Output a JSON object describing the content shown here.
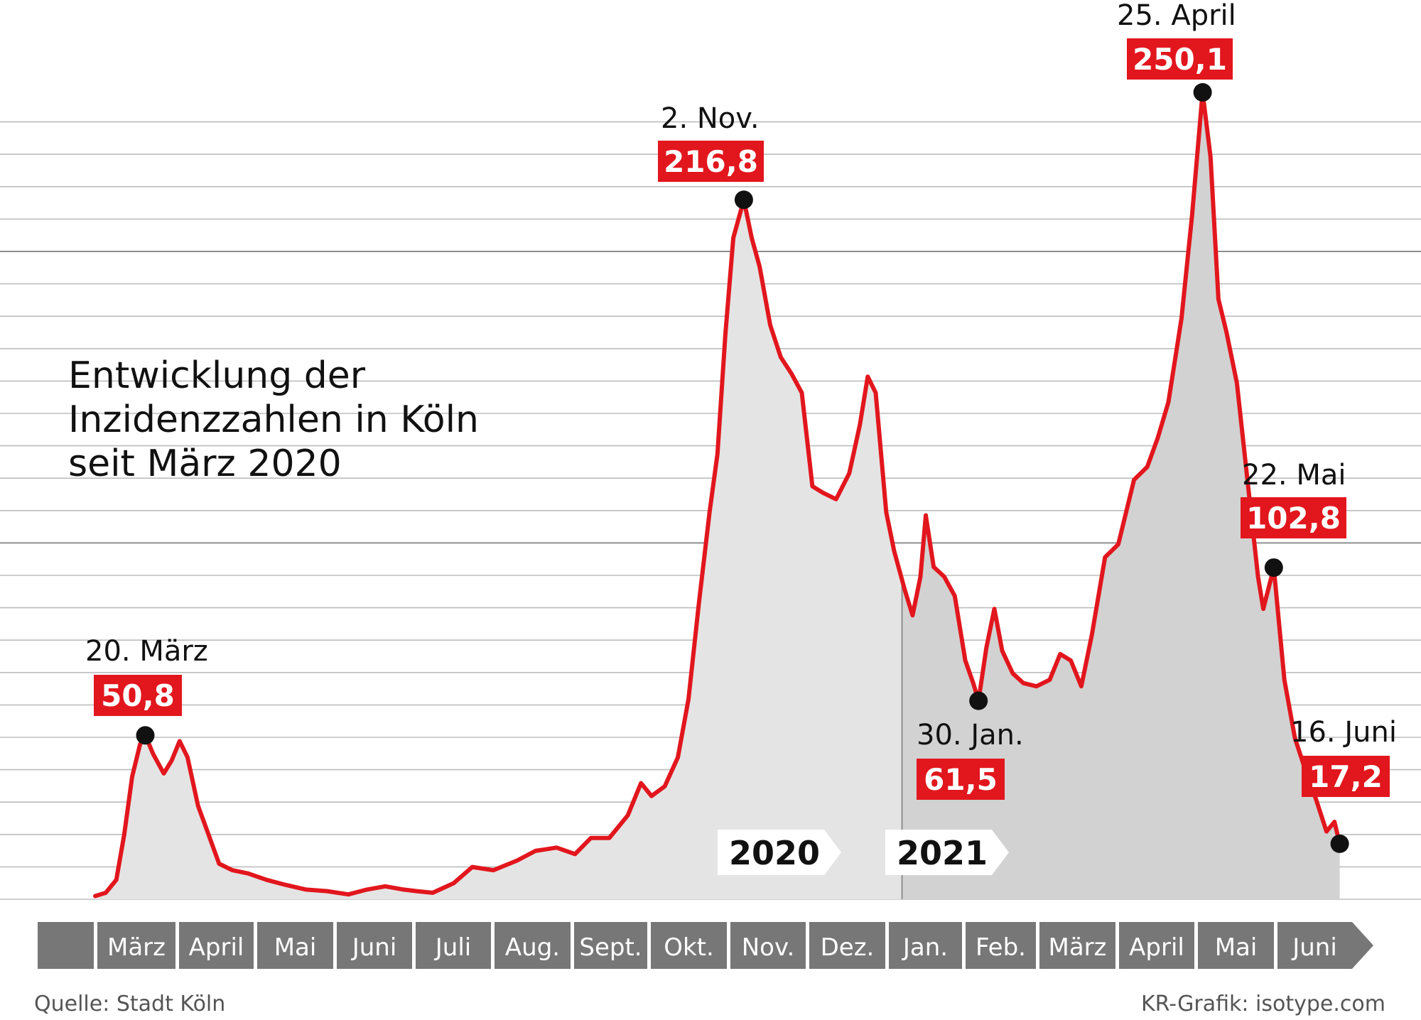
{
  "title_lines": [
    "Entwicklung der",
    "Inzidenzzahlen in Köln",
    "seit März 2020"
  ],
  "source": "Quelle: Stadt Köln",
  "credit": "KR-Grafik: isotype.com",
  "colors": {
    "line": "#e2161d",
    "area_2020": "#e4e4e4",
    "area_2021": "#d2d2d2",
    "grid": "#bdbdbd",
    "axis_bar": "#777777"
  },
  "chart_data": {
    "type": "area",
    "x_unit": "date",
    "ylim": [
      0,
      250.1
    ],
    "grid": true,
    "months": [
      "",
      "März",
      "April",
      "Mai",
      "Juni",
      "Juli",
      "Aug.",
      "Sept.",
      "Okt.",
      "Nov.",
      "Dez.",
      "Jan.",
      "Feb.",
      "März",
      "April",
      "Mai",
      "Juni"
    ],
    "year_labels": [
      {
        "label": "2020",
        "from": "2020-01-01"
      },
      {
        "label": "2021",
        "from": "2021-01-01"
      }
    ],
    "series": [
      {
        "points": [
          [
            "2020-03-01",
            1
          ],
          [
            "2020-03-05",
            2
          ],
          [
            "2020-03-09",
            6
          ],
          [
            "2020-03-12",
            20
          ],
          [
            "2020-03-15",
            38
          ],
          [
            "2020-03-18",
            48
          ],
          [
            "2020-03-20",
            50.8
          ],
          [
            "2020-03-23",
            45
          ],
          [
            "2020-03-27",
            39
          ],
          [
            "2020-03-30",
            43
          ],
          [
            "2020-04-02",
            49
          ],
          [
            "2020-04-05",
            44
          ],
          [
            "2020-04-09",
            29
          ],
          [
            "2020-04-13",
            20
          ],
          [
            "2020-04-17",
            11
          ],
          [
            "2020-04-22",
            9
          ],
          [
            "2020-04-28",
            8
          ],
          [
            "2020-05-05",
            6
          ],
          [
            "2020-05-12",
            4.5
          ],
          [
            "2020-05-20",
            3
          ],
          [
            "2020-05-28",
            2.5
          ],
          [
            "2020-06-05",
            1.5
          ],
          [
            "2020-06-12",
            3
          ],
          [
            "2020-06-19",
            4
          ],
          [
            "2020-06-26",
            3
          ],
          [
            "2020-07-01",
            2.5
          ],
          [
            "2020-07-07",
            2
          ],
          [
            "2020-07-15",
            5
          ],
          [
            "2020-07-22",
            10
          ],
          [
            "2020-07-30",
            9
          ],
          [
            "2020-08-08",
            12
          ],
          [
            "2020-08-15",
            15
          ],
          [
            "2020-08-23",
            16
          ],
          [
            "2020-08-30",
            14
          ],
          [
            "2020-09-05",
            19
          ],
          [
            "2020-09-12",
            19
          ],
          [
            "2020-09-19",
            26
          ],
          [
            "2020-09-24",
            36
          ],
          [
            "2020-09-28",
            32
          ],
          [
            "2020-10-03",
            35
          ],
          [
            "2020-10-08",
            44
          ],
          [
            "2020-10-12",
            62
          ],
          [
            "2020-10-16",
            92
          ],
          [
            "2020-10-20",
            120
          ],
          [
            "2020-10-23",
            138
          ],
          [
            "2020-10-26",
            175
          ],
          [
            "2020-10-29",
            205
          ],
          [
            "2020-11-02",
            216.8
          ],
          [
            "2020-11-05",
            205
          ],
          [
            "2020-11-08",
            196
          ],
          [
            "2020-11-12",
            178
          ],
          [
            "2020-11-16",
            168
          ],
          [
            "2020-11-20",
            163
          ],
          [
            "2020-11-24",
            157
          ],
          [
            "2020-11-28",
            128
          ],
          [
            "2020-12-02",
            126
          ],
          [
            "2020-12-07",
            124
          ],
          [
            "2020-12-12",
            132
          ],
          [
            "2020-12-16",
            147
          ],
          [
            "2020-12-19",
            162
          ],
          [
            "2020-12-22",
            157
          ],
          [
            "2020-12-26",
            120
          ],
          [
            "2020-12-29",
            108
          ],
          [
            "2021-01-02",
            96
          ],
          [
            "2021-01-05",
            88
          ],
          [
            "2021-01-08",
            100
          ],
          [
            "2021-01-10",
            119
          ],
          [
            "2021-01-13",
            103
          ],
          [
            "2021-01-17",
            100
          ],
          [
            "2021-01-21",
            94
          ],
          [
            "2021-01-25",
            74
          ],
          [
            "2021-01-28",
            67
          ],
          [
            "2021-01-30",
            61.5
          ],
          [
            "2021-02-02",
            78
          ],
          [
            "2021-02-05",
            90
          ],
          [
            "2021-02-08",
            77
          ],
          [
            "2021-02-12",
            70
          ],
          [
            "2021-02-16",
            67
          ],
          [
            "2021-02-21",
            66
          ],
          [
            "2021-02-26",
            68
          ],
          [
            "2021-03-02",
            76
          ],
          [
            "2021-03-06",
            74
          ],
          [
            "2021-03-10",
            66
          ],
          [
            "2021-03-14",
            82
          ],
          [
            "2021-03-19",
            106
          ],
          [
            "2021-03-24",
            110
          ],
          [
            "2021-03-30",
            130
          ],
          [
            "2021-04-04",
            134
          ],
          [
            "2021-04-08",
            143
          ],
          [
            "2021-04-12",
            154
          ],
          [
            "2021-04-17",
            180
          ],
          [
            "2021-04-21",
            212
          ],
          [
            "2021-04-25",
            250.1
          ],
          [
            "2021-04-28",
            230
          ],
          [
            "2021-05-01",
            186
          ],
          [
            "2021-05-04",
            176
          ],
          [
            "2021-05-08",
            160
          ],
          [
            "2021-05-12",
            130
          ],
          [
            "2021-05-16",
            100
          ],
          [
            "2021-05-18",
            90
          ],
          [
            "2021-05-22",
            102.8
          ],
          [
            "2021-05-26",
            68
          ],
          [
            "2021-05-30",
            50
          ],
          [
            "2021-06-03",
            40
          ],
          [
            "2021-06-07",
            31
          ],
          [
            "2021-06-11",
            21
          ],
          [
            "2021-06-14",
            24
          ],
          [
            "2021-06-16",
            17.2
          ]
        ]
      }
    ],
    "annotations": [
      {
        "date": "2020-03-20",
        "label": "20. März",
        "value": "50,8",
        "y": 50.8
      },
      {
        "date": "2020-11-02",
        "label": "2. Nov.",
        "value": "216,8",
        "y": 216.8
      },
      {
        "date": "2021-01-30",
        "label": "30. Jan.",
        "value": "61,5",
        "y": 61.5
      },
      {
        "date": "2021-04-25",
        "label": "25. April",
        "value": "250,1",
        "y": 250.1
      },
      {
        "date": "2021-05-22",
        "label": "22. Mai",
        "value": "102,8",
        "y": 102.8
      },
      {
        "date": "2021-06-16",
        "label": "16. Juni",
        "value": "17,2",
        "y": 17.2
      }
    ]
  }
}
